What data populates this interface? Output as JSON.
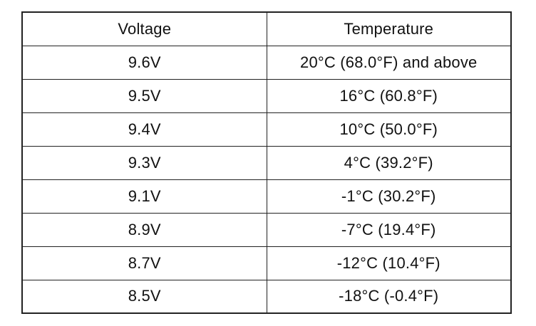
{
  "table": {
    "headers": [
      "Voltage",
      "Temperature"
    ],
    "rows": [
      {
        "voltage": "9.6V",
        "temperature": "20°C (68.0°F) and above"
      },
      {
        "voltage": "9.5V",
        "temperature": "16°C (60.8°F)"
      },
      {
        "voltage": "9.4V",
        "temperature": "10°C (50.0°F)"
      },
      {
        "voltage": "9.3V",
        "temperature": "4°C (39.2°F)"
      },
      {
        "voltage": "9.1V",
        "temperature": "-1°C (30.2°F)"
      },
      {
        "voltage": "8.9V",
        "temperature": "-7°C (19.4°F)"
      },
      {
        "voltage": "8.7V",
        "temperature": "-12°C (10.4°F)"
      },
      {
        "voltage": "8.5V",
        "temperature": "-18°C (-0.4°F)"
      }
    ]
  }
}
